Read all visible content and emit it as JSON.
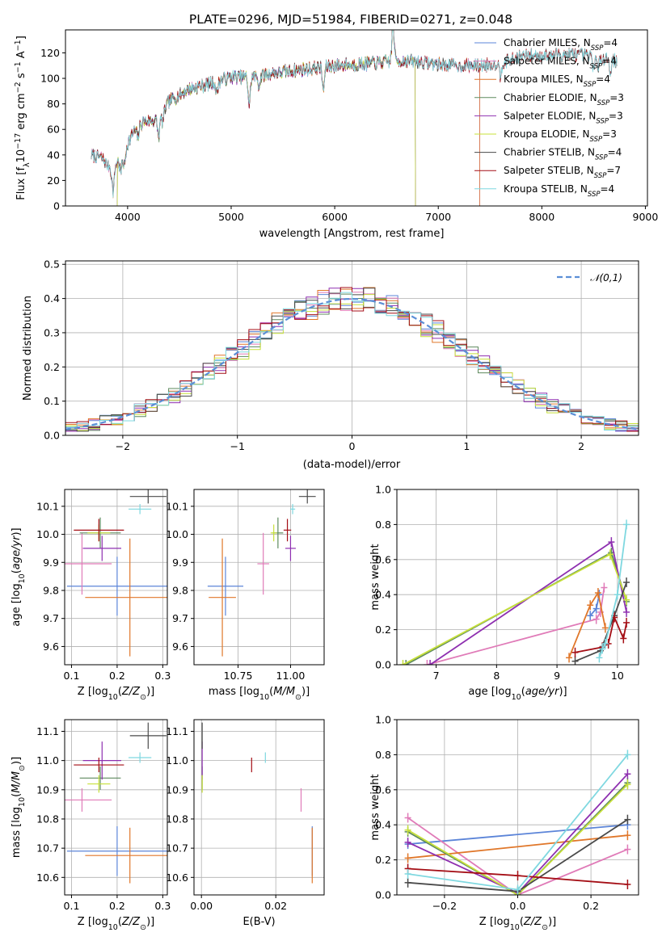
{
  "figure": {
    "title": "PLATE=0296, MJD=51984, FIBERID=0271, z=0.048"
  },
  "colors": {
    "blue": "#5b84d8",
    "pink": "#e07bb8",
    "orange": "#e0772a",
    "green": "#5e8a5e",
    "purple": "#8e2fb0",
    "yellow": "#c7e03a",
    "gray": "#4a4a4a",
    "darkred": "#a40e15",
    "cyan": "#7fd8e0",
    "grid": "#b0b0b0",
    "ref": "#5b8fd6"
  },
  "chart_data": [
    {
      "id": "spectrum",
      "type": "line",
      "xlabel": "wavelength [Angstrom, rest frame]",
      "ylabel": "Flux [f_λ 10^-17 erg cm^-2 s^-1 A^-1]",
      "xlim": [
        3400,
        9020
      ],
      "ylim": [
        0,
        138
      ],
      "xticks": [
        4000,
        5000,
        6000,
        7000,
        8000,
        9000
      ],
      "yticks": [
        0,
        20,
        40,
        60,
        80,
        100,
        120
      ],
      "grid": false,
      "legend_position": "right",
      "series": [
        {
          "name": "Chabrier MILES",
          "nssp": "4",
          "color": "#5b84d8",
          "x_range": [
            3650,
            7400
          ]
        },
        {
          "name": "Salpeter MILES",
          "nssp": "4",
          "color": "#e07bb8",
          "x_range": [
            3650,
            7400
          ]
        },
        {
          "name": "Kroupa MILES",
          "nssp": "4",
          "color": "#e0772a",
          "x_range": [
            3650,
            7400
          ]
        },
        {
          "name": "Chabrier ELODIE",
          "nssp": "3",
          "color": "#5e8a5e",
          "x_range": [
            3900,
            6780
          ]
        },
        {
          "name": "Salpeter ELODIE",
          "nssp": "3",
          "color": "#8e2fb0",
          "x_range": [
            3900,
            6780
          ]
        },
        {
          "name": "Kroupa ELODIE",
          "nssp": "3",
          "color": "#c7e03a",
          "x_range": [
            3900,
            6780
          ]
        },
        {
          "name": "Chabrier STELIB",
          "nssp": "4",
          "color": "#4a4a4a",
          "x_range": [
            3650,
            8730
          ]
        },
        {
          "name": "Salpeter STELIB",
          "nssp": "7",
          "color": "#a40e15",
          "x_range": [
            3650,
            8730
          ]
        },
        {
          "name": "Kroupa STELIB",
          "nssp": "4",
          "color": "#7fd8e0",
          "x_range": [
            3650,
            8730
          ]
        }
      ],
      "data_line": {
        "color": "#b0b0b0",
        "x_range": [
          3650,
          8730
        ]
      },
      "continuum_points": [
        [
          3650,
          40
        ],
        [
          3750,
          38
        ],
        [
          3850,
          28
        ],
        [
          3950,
          40
        ],
        [
          4050,
          57
        ],
        [
          4150,
          66
        ],
        [
          4300,
          68
        ],
        [
          4400,
          82
        ],
        [
          4600,
          92
        ],
        [
          4800,
          96
        ],
        [
          5000,
          101
        ],
        [
          5200,
          101
        ],
        [
          5400,
          104
        ],
        [
          5600,
          106
        ],
        [
          5800,
          108
        ],
        [
          6000,
          110
        ],
        [
          6200,
          111
        ],
        [
          6400,
          112
        ],
        [
          6600,
          114
        ],
        [
          6800,
          113
        ],
        [
          7000,
          111
        ],
        [
          7200,
          110
        ],
        [
          7400,
          110
        ],
        [
          7600,
          112
        ],
        [
          7800,
          117
        ],
        [
          8000,
          118
        ],
        [
          8200,
          119
        ],
        [
          8400,
          118
        ],
        [
          8600,
          116
        ],
        [
          8730,
          114
        ]
      ],
      "absorption_dips": [
        [
          3860,
          18
        ],
        [
          3934,
          12
        ],
        [
          3969,
          12
        ],
        [
          4100,
          8
        ],
        [
          4300,
          14
        ],
        [
          4340,
          8
        ],
        [
          4861,
          10
        ],
        [
          5175,
          22
        ],
        [
          5270,
          8
        ],
        [
          5890,
          18
        ],
        [
          6563,
          -30
        ],
        [
          7600,
          10
        ],
        [
          8500,
          8
        ],
        [
          8542,
          10
        ],
        [
          8662,
          10
        ]
      ]
    },
    {
      "id": "residuals",
      "type": "line",
      "xlabel": "(data-model)/error",
      "ylabel": "Normed distribution",
      "xlim": [
        -2.5,
        2.5
      ],
      "ylim": [
        0,
        0.51
      ],
      "xticks": [
        -2,
        -1,
        0,
        1,
        2
      ],
      "yticks": [
        0.0,
        0.1,
        0.2,
        0.3,
        0.4,
        0.5
      ],
      "grid": true,
      "reference": {
        "label": "𝒩(0,1)",
        "mean": 0,
        "sigma": 1
      },
      "bin_width": 0.1,
      "histogram_series": [
        "Chabrier MILES",
        "Salpeter MILES",
        "Kroupa MILES",
        "Chabrier ELODIE",
        "Salpeter ELODIE",
        "Kroupa ELODIE",
        "Chabrier STELIB",
        "Salpeter STELIB",
        "Kroupa STELIB"
      ]
    },
    {
      "id": "age_vs_Z",
      "type": "scatter",
      "xlabel": "Z [log10(Z/Z⊙)]",
      "ylabel": "age [log10(age/yr)]",
      "xlim": [
        0.085,
        0.31
      ],
      "ylim": [
        9.535,
        10.16
      ],
      "xticks": [
        0.1,
        0.2,
        0.3
      ],
      "yticks": [
        9.6,
        9.7,
        9.8,
        9.9,
        10.0,
        10.1
      ],
      "grid": true,
      "points": [
        {
          "series": "Chabrier MILES",
          "x": 0.2,
          "y": 9.815,
          "xerr": 0.11,
          "yerr": 0.105
        },
        {
          "series": "Salpeter MILES",
          "x": 0.123,
          "y": 9.895,
          "xerr": 0.065,
          "yerr": 0.11
        },
        {
          "series": "Kroupa MILES",
          "x": 0.228,
          "y": 9.775,
          "xerr": 0.098,
          "yerr": 0.21
        },
        {
          "series": "Chabrier ELODIE",
          "x": 0.163,
          "y": 10.005,
          "xerr": 0.045,
          "yerr": 0.055
        },
        {
          "series": "Salpeter ELODIE",
          "x": 0.167,
          "y": 9.95,
          "xerr": 0.042,
          "yerr": 0.045
        },
        {
          "series": "Kroupa ELODIE",
          "x": 0.16,
          "y": 10.005,
          "xerr": 0.025,
          "yerr": 0.03
        },
        {
          "series": "Chabrier STELIB",
          "x": 0.268,
          "y": 10.135,
          "xerr": 0.04,
          "yerr": 0.025
        },
        {
          "series": "Salpeter STELIB",
          "x": 0.16,
          "y": 10.015,
          "xerr": 0.055,
          "yerr": 0.04
        },
        {
          "series": "Kroupa STELIB",
          "x": 0.25,
          "y": 10.09,
          "xerr": 0.025,
          "yerr": 0.018
        }
      ]
    },
    {
      "id": "age_vs_mass",
      "type": "scatter",
      "xlabel": "mass [log10(M/M⊙)]",
      "ylabel": "",
      "xlim": [
        10.54,
        11.16
      ],
      "ylim": [
        9.535,
        10.16
      ],
      "xticks": [
        10.75,
        11.0
      ],
      "yticks": [
        9.6,
        9.7,
        9.8,
        9.9,
        10.0,
        10.1
      ],
      "grid": true,
      "points": [
        {
          "series": "Chabrier MILES",
          "x": 10.69,
          "y": 9.815,
          "xerr": 0.085,
          "yerr": 0.105
        },
        {
          "series": "Salpeter MILES",
          "x": 10.87,
          "y": 9.895,
          "xerr": 0.028,
          "yerr": 0.11
        },
        {
          "series": "Kroupa MILES",
          "x": 10.675,
          "y": 9.775,
          "xerr": 0.065,
          "yerr": 0.21
        },
        {
          "series": "Chabrier ELODIE",
          "x": 10.94,
          "y": 10.005,
          "xerr": 0.025,
          "yerr": 0.055
        },
        {
          "series": "Salpeter ELODIE",
          "x": 11.0,
          "y": 9.95,
          "xerr": 0.025,
          "yerr": 0.045
        },
        {
          "series": "Kroupa ELODIE",
          "x": 10.92,
          "y": 10.005,
          "xerr": 0.015,
          "yerr": 0.03
        },
        {
          "series": "Chabrier STELIB",
          "x": 11.08,
          "y": 10.135,
          "xerr": 0.04,
          "yerr": 0.025
        },
        {
          "series": "Salpeter STELIB",
          "x": 10.985,
          "y": 10.015,
          "xerr": 0.018,
          "yerr": 0.04
        },
        {
          "series": "Kroupa STELIB",
          "x": 11.01,
          "y": 10.09,
          "xerr": 0.012,
          "yerr": 0.018
        }
      ]
    },
    {
      "id": "weight_vs_age",
      "type": "line",
      "xlabel": "age [log10(age/yr)]",
      "ylabel": "mass weight",
      "xlim": [
        6.35,
        10.35
      ],
      "ylim": [
        0,
        1.0
      ],
      "xticks": [
        7,
        8,
        9,
        10
      ],
      "yticks": [
        0.0,
        0.2,
        0.4,
        0.6,
        0.8,
        1.0
      ],
      "grid": true,
      "series": [
        {
          "name": "Chabrier MILES",
          "points": [
            [
              9.55,
              0.28
            ],
            [
              9.65,
              0.32
            ],
            [
              9.7,
              0.4
            ]
          ]
        },
        {
          "name": "Salpeter MILES",
          "points": [
            [
              6.85,
              0.0
            ],
            [
              9.65,
              0.26
            ],
            [
              9.72,
              0.3
            ],
            [
              9.78,
              0.44
            ]
          ]
        },
        {
          "name": "Kroupa MILES",
          "points": [
            [
              9.2,
              0.04
            ],
            [
              9.55,
              0.34
            ],
            [
              9.68,
              0.41
            ],
            [
              9.8,
              0.21
            ]
          ]
        },
        {
          "name": "Chabrier ELODIE",
          "points": [
            [
              6.5,
              0.0
            ],
            [
              9.9,
              0.64
            ],
            [
              10.15,
              0.36
            ]
          ]
        },
        {
          "name": "Salpeter ELODIE",
          "points": [
            [
              6.9,
              0.0
            ],
            [
              9.9,
              0.7
            ],
            [
              10.15,
              0.3
            ]
          ]
        },
        {
          "name": "Kroupa ELODIE",
          "points": [
            [
              6.45,
              0.0
            ],
            [
              9.88,
              0.63
            ],
            [
              10.15,
              0.37
            ]
          ]
        },
        {
          "name": "Chabrier STELIB",
          "points": [
            [
              9.3,
              0.02
            ],
            [
              9.72,
              0.08
            ],
            [
              9.95,
              0.28
            ],
            [
              10.15,
              0.47
            ]
          ]
        },
        {
          "name": "Salpeter STELIB",
          "points": [
            [
              9.3,
              0.07
            ],
            [
              9.75,
              0.1
            ],
            [
              9.85,
              0.12
            ],
            [
              9.95,
              0.27
            ],
            [
              10.1,
              0.15
            ],
            [
              10.15,
              0.24
            ]
          ]
        },
        {
          "name": "Kroupa STELIB",
          "points": [
            [
              9.7,
              0.04
            ],
            [
              9.75,
              0.09
            ],
            [
              9.8,
              0.12
            ],
            [
              10.0,
              0.4
            ],
            [
              10.15,
              0.8
            ]
          ]
        }
      ]
    },
    {
      "id": "mass_vs_Z",
      "type": "scatter",
      "xlabel": "Z [log10(Z/Z⊙)]",
      "ylabel": "mass [log10(M/M⊙)]",
      "xlim": [
        0.085,
        0.31
      ],
      "ylim": [
        10.54,
        11.14
      ],
      "xticks": [
        0.1,
        0.2,
        0.3
      ],
      "yticks": [
        10.6,
        10.7,
        10.8,
        10.9,
        11.0,
        11.1
      ],
      "grid": true,
      "points": [
        {
          "series": "Chabrier MILES",
          "x": 0.2,
          "y": 10.69,
          "xerr": 0.11,
          "yerr": 0.085
        },
        {
          "series": "Salpeter MILES",
          "x": 0.123,
          "y": 10.865,
          "xerr": 0.065,
          "yerr": 0.04
        },
        {
          "series": "Kroupa MILES",
          "x": 0.228,
          "y": 10.675,
          "xerr": 0.098,
          "yerr": 0.095
        },
        {
          "series": "Chabrier ELODIE",
          "x": 0.163,
          "y": 10.94,
          "xerr": 0.045,
          "yerr": 0.04
        },
        {
          "series": "Salpeter ELODIE",
          "x": 0.167,
          "y": 11.0,
          "xerr": 0.042,
          "yerr": 0.065
        },
        {
          "series": "Kroupa ELODIE",
          "x": 0.16,
          "y": 10.92,
          "xerr": 0.025,
          "yerr": 0.03
        },
        {
          "series": "Chabrier STELIB",
          "x": 0.268,
          "y": 11.085,
          "xerr": 0.04,
          "yerr": 0.045
        },
        {
          "series": "Salpeter STELIB",
          "x": 0.16,
          "y": 10.985,
          "xerr": 0.055,
          "yerr": 0.025
        },
        {
          "series": "Kroupa STELIB",
          "x": 0.25,
          "y": 11.01,
          "xerr": 0.025,
          "yerr": 0.018
        }
      ]
    },
    {
      "id": "mass_vs_ebv",
      "type": "scatter",
      "xlabel": "E(B-V)",
      "ylabel": "",
      "xlim": [
        -0.002,
        0.033
      ],
      "ylim": [
        10.54,
        11.14
      ],
      "xticks": [
        0.0,
        0.02
      ],
      "yticks": [
        10.6,
        10.7,
        10.8,
        10.9,
        11.0,
        11.1
      ],
      "grid": true,
      "points": [
        {
          "series": "Chabrier MILES",
          "x": 0.0298,
          "y": 10.69,
          "yerr": 0.085
        },
        {
          "series": "Salpeter MILES",
          "x": 0.0268,
          "y": 10.865,
          "yerr": 0.04
        },
        {
          "series": "Kroupa MILES",
          "x": 0.0298,
          "y": 10.675,
          "yerr": 0.095
        },
        {
          "series": "Chabrier ELODIE",
          "x": 0.0002,
          "y": 10.94,
          "yerr": 0.04
        },
        {
          "series": "Salpeter ELODIE",
          "x": 0.0002,
          "y": 11.0,
          "yerr": 0.065
        },
        {
          "series": "Kroupa ELODIE",
          "x": 0.0002,
          "y": 10.92,
          "yerr": 0.03
        },
        {
          "series": "Chabrier STELIB",
          "x": 0.0002,
          "y": 11.085,
          "yerr": 0.045
        },
        {
          "series": "Salpeter STELIB",
          "x": 0.0135,
          "y": 10.985,
          "yerr": 0.025
        },
        {
          "series": "Kroupa STELIB",
          "x": 0.0172,
          "y": 11.01,
          "yerr": 0.018
        }
      ]
    },
    {
      "id": "weight_vs_Z",
      "type": "line",
      "xlabel": "Z [log10(Z/Z⊙)]",
      "ylabel": "mass weight",
      "xlim": [
        -0.33,
        0.33
      ],
      "ylim": [
        0,
        1.0
      ],
      "xticks": [
        -0.2,
        0.0,
        0.2
      ],
      "yticks": [
        0.0,
        0.2,
        0.4,
        0.6,
        0.8,
        1.0
      ],
      "grid": true,
      "series": [
        {
          "name": "Chabrier MILES",
          "points": [
            [
              -0.3,
              0.29
            ],
            [
              0.3,
              0.4
            ]
          ]
        },
        {
          "name": "Salpeter MILES",
          "points": [
            [
              -0.3,
              0.44
            ],
            [
              0.0,
              0.0
            ],
            [
              0.3,
              0.26
            ]
          ]
        },
        {
          "name": "Kroupa MILES",
          "points": [
            [
              -0.3,
              0.21
            ],
            [
              0.3,
              0.34
            ]
          ]
        },
        {
          "name": "Chabrier ELODIE",
          "points": [
            [
              -0.3,
              0.36
            ],
            [
              0.0,
              0.0
            ],
            [
              0.3,
              0.64
            ]
          ]
        },
        {
          "name": "Salpeter ELODIE",
          "points": [
            [
              -0.3,
              0.3
            ],
            [
              0.0,
              0.01
            ],
            [
              0.3,
              0.69
            ]
          ]
        },
        {
          "name": "Kroupa ELODIE",
          "points": [
            [
              -0.3,
              0.37
            ],
            [
              0.0,
              0.0
            ],
            [
              0.3,
              0.63
            ]
          ]
        },
        {
          "name": "Chabrier STELIB",
          "points": [
            [
              -0.3,
              0.07
            ],
            [
              0.0,
              0.02
            ],
            [
              0.3,
              0.43
            ]
          ]
        },
        {
          "name": "Salpeter STELIB",
          "points": [
            [
              -0.3,
              0.15
            ],
            [
              0.0,
              0.11
            ],
            [
              0.3,
              0.06
            ]
          ]
        },
        {
          "name": "Kroupa STELIB",
          "points": [
            [
              -0.3,
              0.12
            ],
            [
              0.0,
              0.03
            ],
            [
              0.3,
              0.8
            ]
          ]
        }
      ]
    }
  ]
}
